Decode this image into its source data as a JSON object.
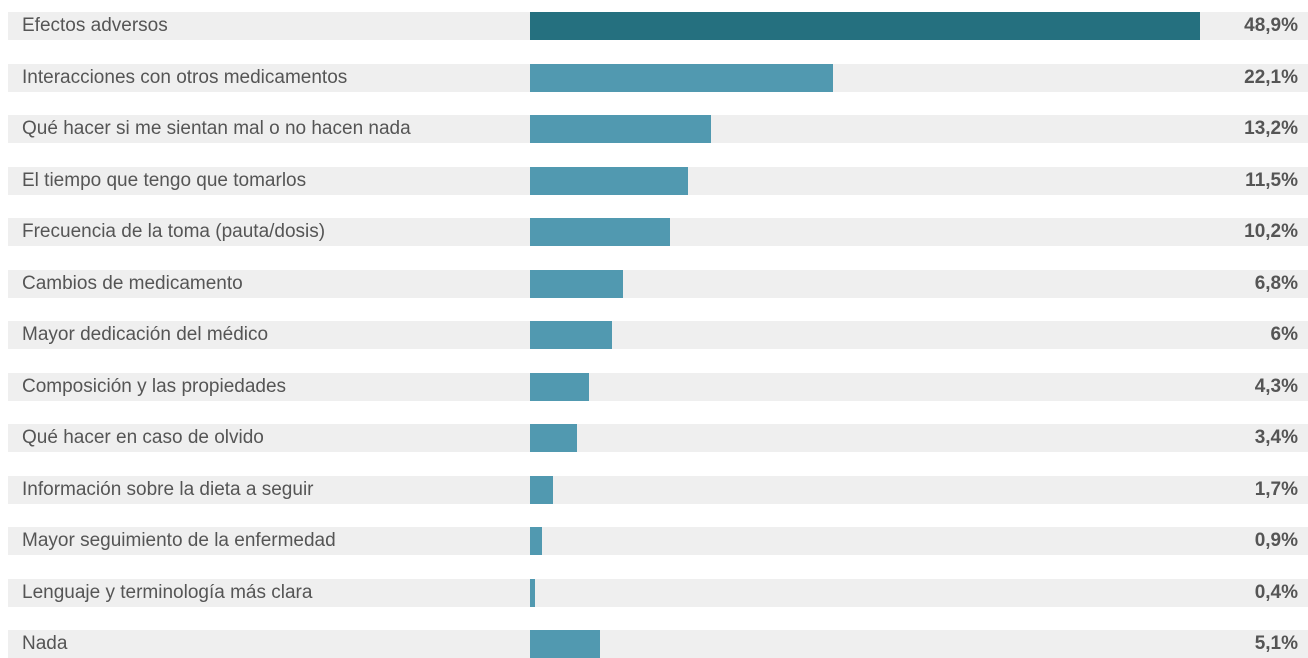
{
  "chart_data": {
    "type": "bar",
    "orientation": "horizontal",
    "categories": [
      "Efectos adversos",
      "Interacciones con otros medicamentos",
      "Qué hacer si me sientan mal o no hacen nada",
      "El tiempo que tengo que tomarlos",
      "Frecuencia de la toma (pauta/dosis)",
      "Cambios de medicamento",
      "Mayor dedicación del médico",
      "Composición y las propiedades",
      "Qué hacer en caso de olvido",
      "Información sobre la dieta a seguir",
      "Mayor seguimiento de la enfermedad",
      "Lenguaje y terminología más clara",
      "Nada"
    ],
    "values": [
      48.9,
      22.1,
      13.2,
      11.5,
      10.2,
      6.8,
      6,
      4.3,
      3.4,
      1.7,
      0.9,
      0.4,
      5.1
    ],
    "value_labels": [
      "48,9%",
      "22,1%",
      "13,2%",
      "11,5%",
      "10,2%",
      "6,8%",
      "6%",
      "4,3%",
      "3,4%",
      "1,7%",
      "0,9%",
      "0,4%",
      "5,1%"
    ],
    "xlim": [
      0,
      48.9
    ],
    "grid": false,
    "colors": {
      "highlight_bar": "#25707f",
      "bar": "#5199b0",
      "row_background": "#efefef",
      "text": "#555555"
    }
  }
}
